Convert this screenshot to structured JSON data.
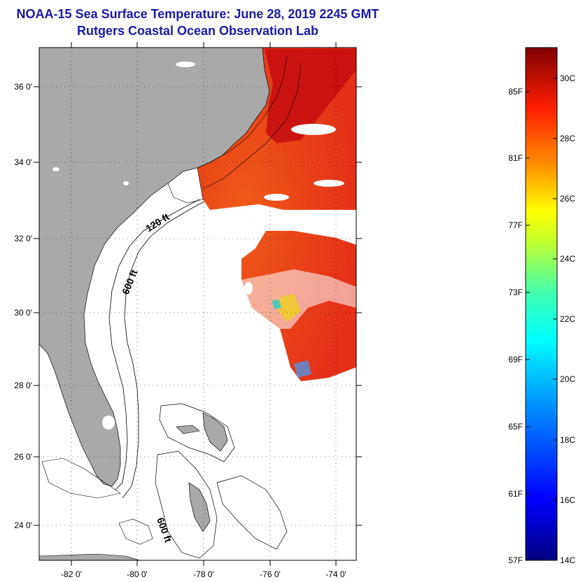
{
  "header": {
    "title": "NOAA-15 Sea Surface Temperature:  June 28, 2019 2245 GMT",
    "subtitle": "Rutgers Coastal Ocean Observation Lab"
  },
  "map": {
    "lat_labels": [
      "36 0'",
      "34 0'",
      "32 0'",
      "30 0'",
      "28 0'",
      "26 0'",
      "24 0'"
    ],
    "lon_labels": [
      "-82 0'",
      "-80 0'",
      "-78 0'",
      "-76 0'",
      "-74 0'"
    ],
    "contour_labels": [
      "120 ft",
      "600 ft",
      "600 ft"
    ]
  },
  "colorbar": {
    "fahrenheit_labels": [
      "85F",
      "81F",
      "77F",
      "73F",
      "69F",
      "65F",
      "61F",
      "57F"
    ],
    "celsius_labels": [
      "30C",
      "28C",
      "26C",
      "24C",
      "22C",
      "20C",
      "18C",
      "16C",
      "14C"
    ]
  },
  "colors": {
    "title": "#1a1aa8",
    "land": "#a9a9a9",
    "warm_sst": "#ee3a14",
    "hot_sst": "#c81010"
  }
}
